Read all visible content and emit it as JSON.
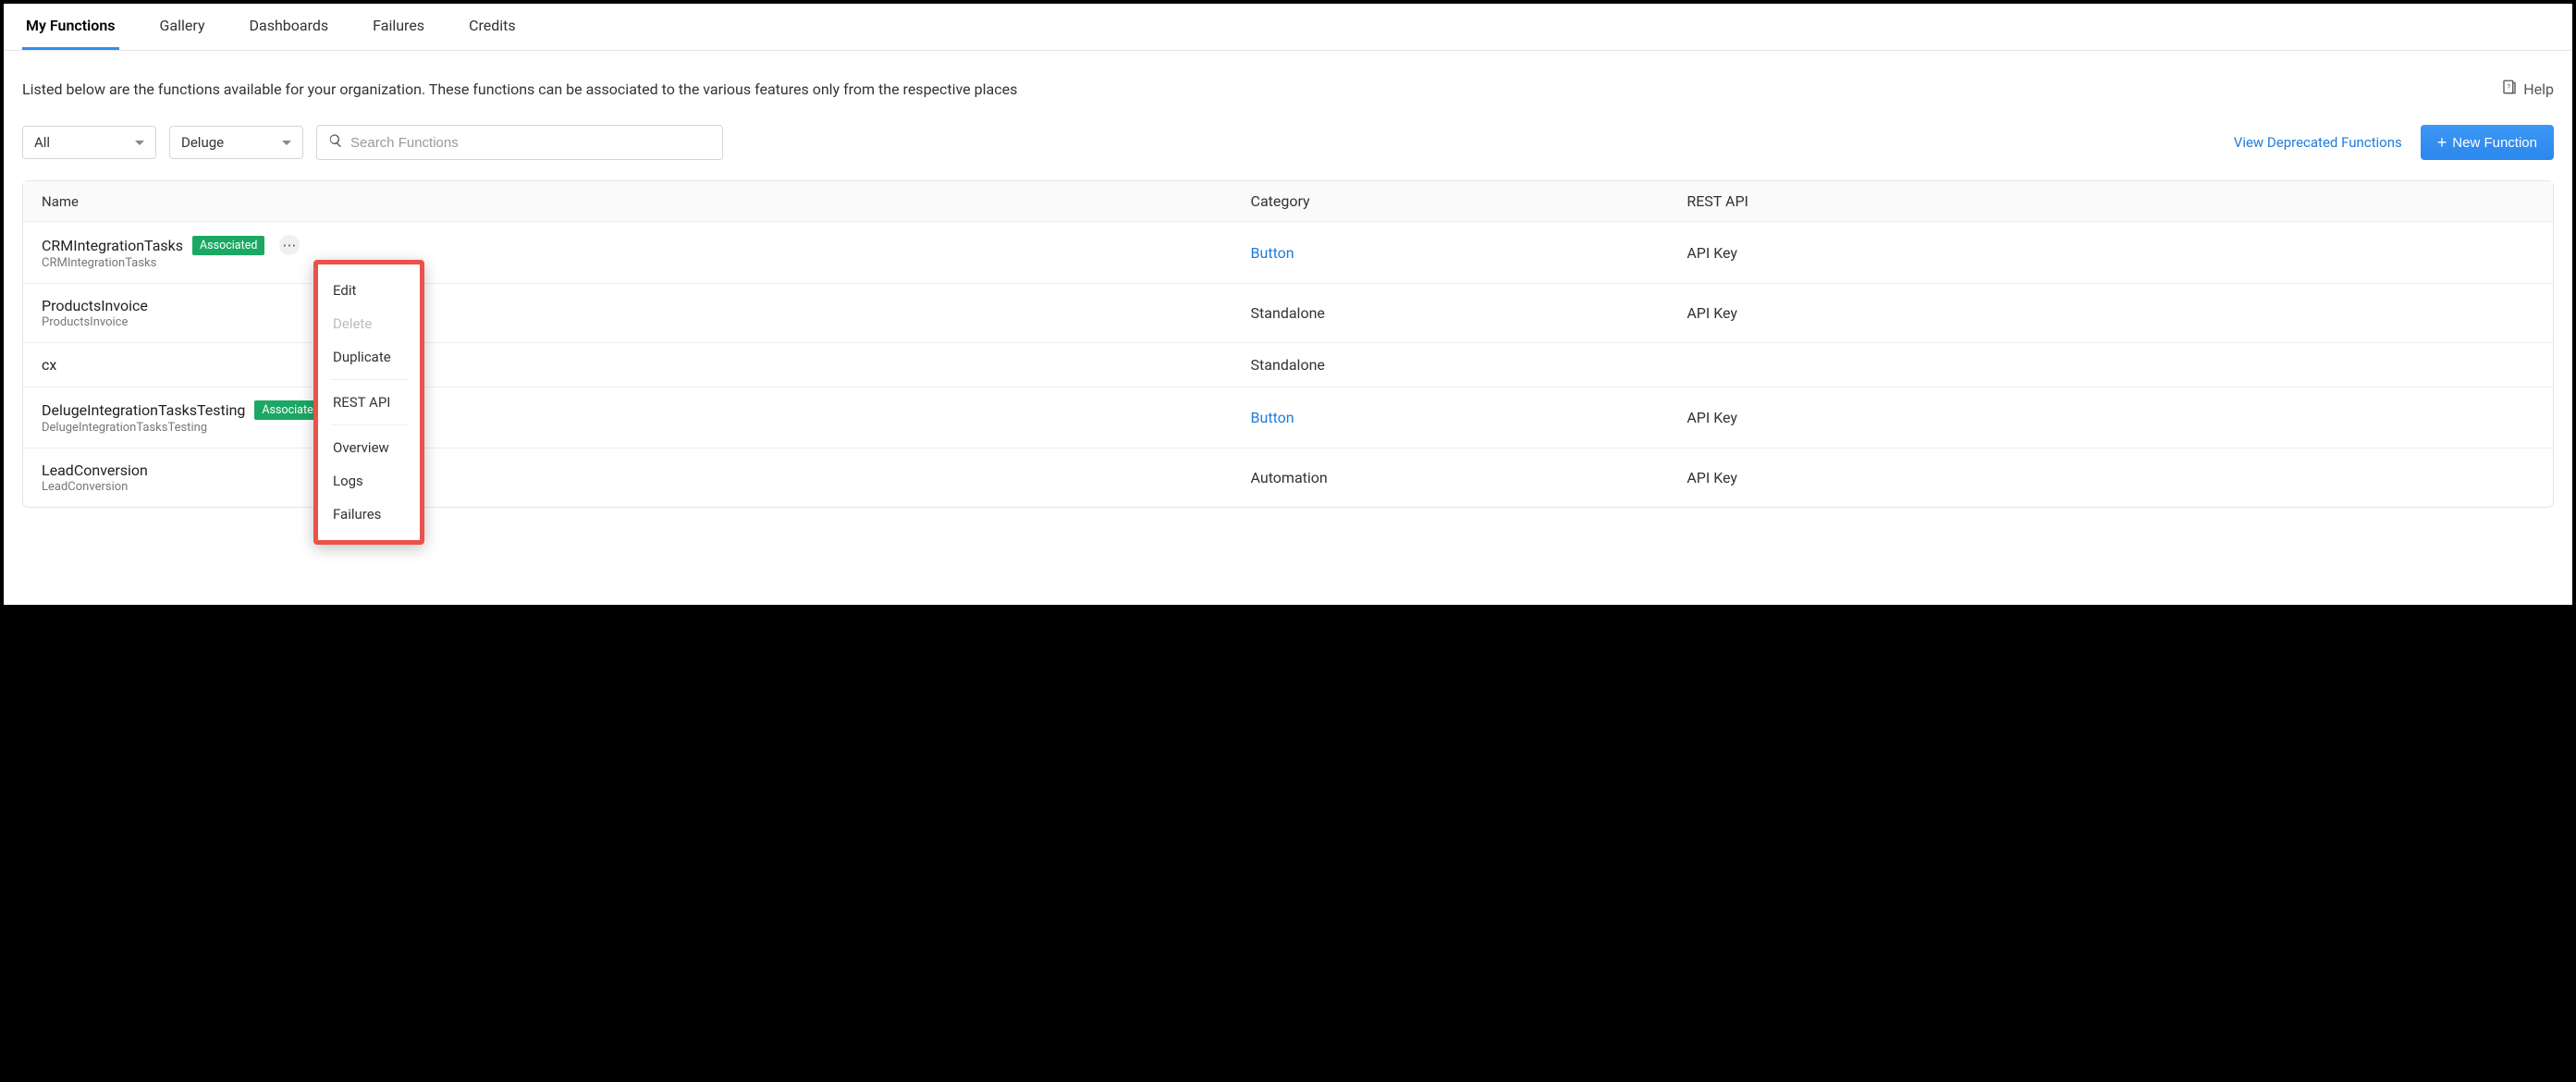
{
  "tabs": [
    {
      "label": "My Functions",
      "active": true
    },
    {
      "label": "Gallery",
      "active": false
    },
    {
      "label": "Dashboards",
      "active": false
    },
    {
      "label": "Failures",
      "active": false
    },
    {
      "label": "Credits",
      "active": false
    }
  ],
  "description": "Listed below are the functions available for your organization. These functions can be associated to the various features only from the respective places",
  "help_label": "Help",
  "filters": {
    "scope": "All",
    "language": "Deluge",
    "search_placeholder": "Search Functions"
  },
  "actions": {
    "deprecated_link": "View Deprecated Functions",
    "new_function": "New Function"
  },
  "columns": {
    "name": "Name",
    "category": "Category",
    "restapi": "REST API"
  },
  "badge_text": "Associated",
  "rows": [
    {
      "title": "CRMIntegrationTasks",
      "sub": "CRMIntegrationTasks",
      "badge": true,
      "more": true,
      "category": "Button",
      "category_link": true,
      "restapi": "API Key"
    },
    {
      "title": "ProductsInvoice",
      "sub": "ProductsInvoice",
      "badge": false,
      "category": "Standalone",
      "category_link": false,
      "restapi": "API Key"
    },
    {
      "title": "cx",
      "sub": "",
      "badge": false,
      "category": "Standalone",
      "category_link": false,
      "restapi": ""
    },
    {
      "title": "DelugeIntegrationTasksTesting",
      "sub": "DelugeIntegrationTasksTesting",
      "badge": true,
      "category": "Button",
      "category_link": true,
      "restapi": "API Key"
    },
    {
      "title": "LeadConversion",
      "sub": "LeadConversion",
      "badge": false,
      "category": "Automation",
      "category_link": false,
      "restapi": "API Key"
    }
  ],
  "context_menu": {
    "groups": [
      [
        {
          "label": "Edit",
          "disabled": false
        },
        {
          "label": "Delete",
          "disabled": true
        },
        {
          "label": "Duplicate",
          "disabled": false
        }
      ],
      [
        {
          "label": "REST API",
          "disabled": false
        }
      ],
      [
        {
          "label": "Overview",
          "disabled": false
        },
        {
          "label": "Logs",
          "disabled": false
        },
        {
          "label": "Failures",
          "disabled": false
        }
      ]
    ]
  },
  "colors": {
    "accent_blue": "#338cf0",
    "link_blue": "#1f7bdc",
    "badge_green": "#1ba864",
    "highlight_red": "#e9524a",
    "border_gray": "#e5e5e5",
    "text_primary": "#333333",
    "text_muted": "#777777",
    "background": "#ffffff"
  }
}
